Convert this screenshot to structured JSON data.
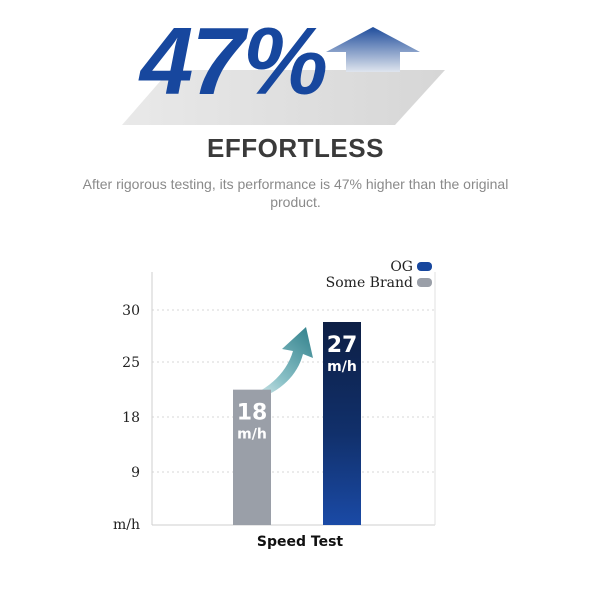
{
  "hero": {
    "percent": "47%",
    "headline": "EFFORTLESS",
    "description": "After rigorous testing, its performance is 47% higher than the original product."
  },
  "colors": {
    "brand_blue": "#17479e",
    "og_bar_top": "#0d1f45",
    "og_bar_bottom": "#1a4aa6",
    "some_brand_bar": "#9a9fa8",
    "headline_text": "#3a3a3a",
    "arrow_teal": "#3f8c95"
  },
  "chart_data": {
    "type": "bar",
    "xlabel": "Speed Test",
    "ylabel": "m/h",
    "y_ticks": [
      "30",
      "25",
      "18",
      "9",
      "m/h"
    ],
    "grid": true,
    "legend_position": "top-right",
    "categories": [
      "Some Brand",
      "OG"
    ],
    "series": [
      {
        "name": "Some Brand",
        "value": 18,
        "label_value": "18",
        "label_unit": "m/h",
        "color": "#9a9fa8"
      },
      {
        "name": "OG",
        "value": 27,
        "label_value": "27",
        "label_unit": "m/h",
        "color": "#17479e"
      }
    ],
    "legend": [
      {
        "name": "OG",
        "color": "#17479e"
      },
      {
        "name": "Some Brand",
        "color": "#9a9fa8"
      }
    ]
  }
}
